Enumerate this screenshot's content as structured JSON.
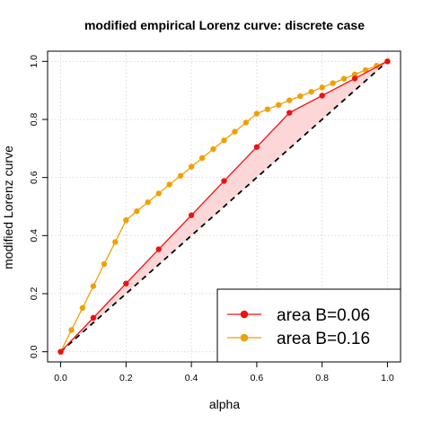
{
  "chart_data": {
    "type": "line",
    "title": "modified empirical Lorenz curve: discrete case",
    "xlabel": "alpha",
    "ylabel": "modified Lorenz curve",
    "xlim": [
      -0.04,
      1.04
    ],
    "ylim": [
      -0.035,
      1.035
    ],
    "x_ticks": [
      0.0,
      0.2,
      0.4,
      0.6,
      0.8,
      1.0
    ],
    "y_ticks": [
      0.0,
      0.2,
      0.4,
      0.6,
      0.8,
      1.0
    ],
    "x_tick_labels": [
      "0.0",
      "0.2",
      "0.4",
      "0.6",
      "0.8",
      "1.0"
    ],
    "y_tick_labels": [
      "0.0",
      "0.2",
      "0.4",
      "0.6",
      "0.8",
      "1.0"
    ],
    "grid": true,
    "legend_position": "bottom-right",
    "reference_line": {
      "style": "dashed",
      "color": "#000000",
      "points": [
        [
          0,
          0
        ],
        [
          1,
          1
        ]
      ]
    },
    "shaded_area": {
      "between": "area B=0.06",
      "and": "reference_line",
      "color": "#fdd7d7"
    },
    "series": [
      {
        "name": "area B=0.06",
        "color": "#ee1111",
        "x": [
          0.0,
          0.1,
          0.2,
          0.3,
          0.4,
          0.5,
          0.6,
          0.7,
          0.8,
          0.9,
          1.0
        ],
        "y": [
          0.0,
          0.117,
          0.235,
          0.353,
          0.47,
          0.588,
          0.705,
          0.823,
          0.882,
          0.941,
          1.0
        ]
      },
      {
        "name": "area B=0.16",
        "color": "#f0a000",
        "x": [
          0.0,
          0.033,
          0.067,
          0.1,
          0.133,
          0.167,
          0.2,
          0.233,
          0.267,
          0.3,
          0.333,
          0.367,
          0.4,
          0.433,
          0.467,
          0.5,
          0.533,
          0.567,
          0.6,
          0.633,
          0.667,
          0.7,
          0.733,
          0.767,
          0.8,
          0.833,
          0.867,
          0.9,
          0.933,
          0.967,
          1.0
        ],
        "y": [
          0.0,
          0.075,
          0.151,
          0.226,
          0.302,
          0.378,
          0.453,
          0.484,
          0.515,
          0.545,
          0.576,
          0.606,
          0.637,
          0.667,
          0.698,
          0.728,
          0.758,
          0.789,
          0.82,
          0.835,
          0.85,
          0.866,
          0.88,
          0.895,
          0.91,
          0.925,
          0.94,
          0.955,
          0.97,
          0.985,
          1.0
        ]
      }
    ]
  }
}
